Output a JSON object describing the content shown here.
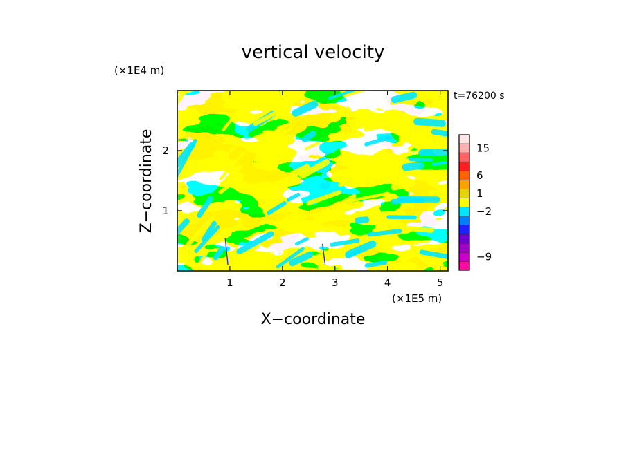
{
  "chart_data": {
    "type": "heatmap",
    "title": "vertical velocity",
    "xlabel": "X−coordinate",
    "ylabel": "Z−coordinate",
    "x_unit": "(×1E5 m)",
    "y_unit": "(×1E4 m)",
    "time_label": "t=76200 s",
    "xlim": [
      0,
      5.15
    ],
    "ylim": [
      0,
      3.0
    ],
    "x_ticks": [
      {
        "value": 1,
        "label": "1"
      },
      {
        "value": 2,
        "label": "2"
      },
      {
        "value": 3,
        "label": "3"
      },
      {
        "value": 4,
        "label": "4"
      },
      {
        "value": 5,
        "label": "5"
      }
    ],
    "y_ticks": [
      {
        "value": 1,
        "label": "1"
      },
      {
        "value": 2,
        "label": "2"
      }
    ],
    "dominant_fill": {
      "positive": "#ffff00",
      "negative": "#00e5ff"
    },
    "colorbar": {
      "levels": [
        {
          "color": "#ff0aa0"
        },
        {
          "color": "#c800c8"
        },
        {
          "color": "#a000c8"
        },
        {
          "color": "#7000d0"
        },
        {
          "color": "#2020ff"
        },
        {
          "color": "#0080ff"
        },
        {
          "color": "#00e5ff"
        },
        {
          "color": "#ffff00"
        },
        {
          "color": "#e6d200"
        },
        {
          "color": "#ffa000"
        },
        {
          "color": "#ff6400"
        },
        {
          "color": "#ff1e1e"
        },
        {
          "color": "#ff6464"
        },
        {
          "color": "#ffb0b0"
        },
        {
          "color": "#ffe6e6"
        }
      ],
      "labels": [
        {
          "text": "−9",
          "level_index": 1
        },
        {
          "text": "−2",
          "level_index": 6
        },
        {
          "text": "1",
          "level_index": 8
        },
        {
          "text": "6",
          "level_index": 10
        },
        {
          "text": "15",
          "level_index": 13
        }
      ]
    }
  }
}
